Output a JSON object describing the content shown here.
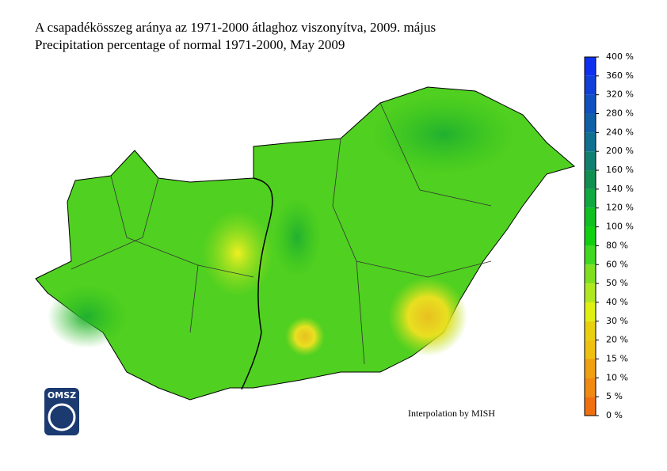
{
  "header": {
    "title": "A csapadékösszeg aránya az 1971-2000 átlaghoz viszonyítva, 2009. május",
    "subtitle": "Precipitation percentage of normal 1971-2000, May 2009"
  },
  "legend": {
    "labels": [
      "400 %",
      "360 %",
      "320 %",
      "280 %",
      "240 %",
      "200 %",
      "160 %",
      "140 %",
      "120 %",
      "100 %",
      "80 %",
      "60 %",
      "50 %",
      "40 %",
      "30 %",
      "20 %",
      "15 %",
      "10 %",
      "5 %",
      "0 %"
    ],
    "colors": [
      "#1030f0",
      "#1040d8",
      "#1050c0",
      "#1060a8",
      "#107090",
      "#108070",
      "#109050",
      "#10a840",
      "#10c020",
      "#10d010",
      "#40d820",
      "#80e020",
      "#b0e820",
      "#e0f010",
      "#e8d010",
      "#f0c010",
      "#f0a010",
      "#f08a10",
      "#f07010"
    ]
  },
  "credit": "Interpolation by MISH",
  "logo": "OMSZ"
}
